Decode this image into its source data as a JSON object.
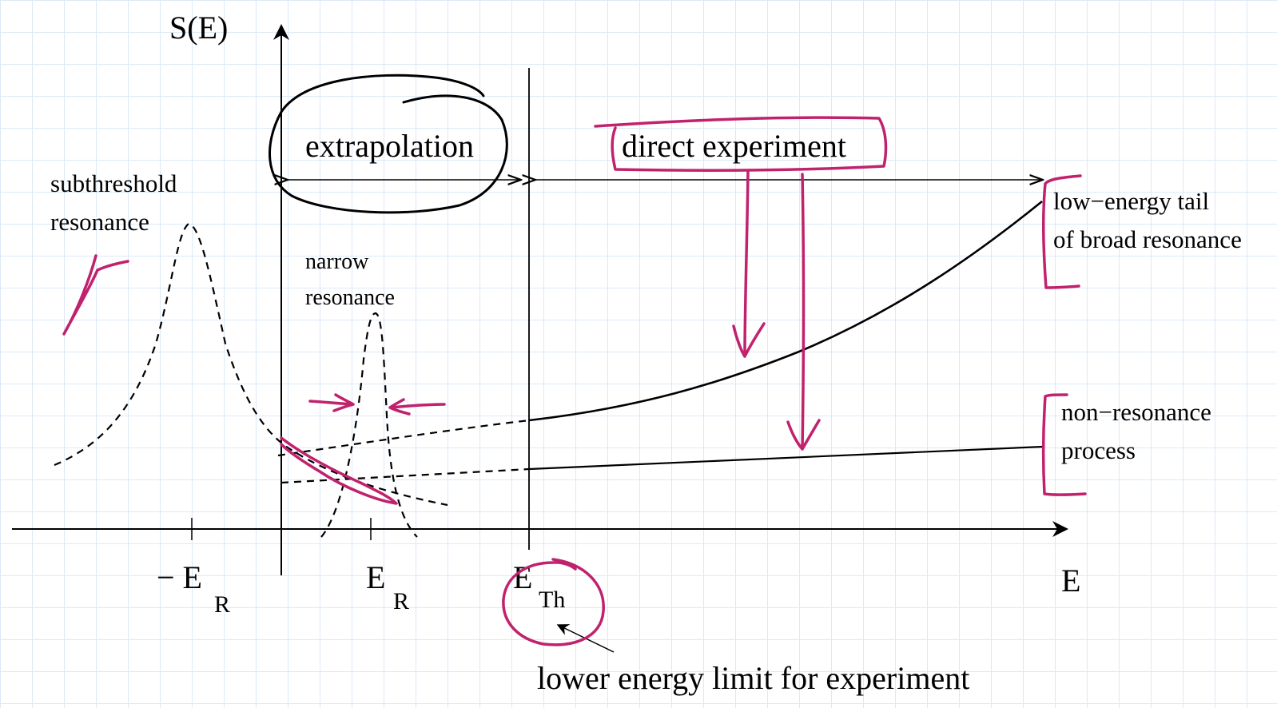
{
  "axes": {
    "y_label": "S(E)",
    "x_label": "E"
  },
  "ticks": {
    "neg_er_prefix": "− E",
    "neg_er_sub": "R",
    "er": "E",
    "er_sub": "R",
    "eth": "E",
    "eth_sub": "Th"
  },
  "regions": {
    "extrapolation": "extrapolation",
    "direct": "direct experiment"
  },
  "labels": {
    "subthreshold_line1": "subthreshold",
    "subthreshold_line2": "resonance",
    "narrow_line1": "narrow",
    "narrow_line2": "resonance",
    "tail_line1": "low−energy tail",
    "tail_line2": "of broad resonance",
    "nonres_line1": "non−resonance",
    "nonres_line2": "process",
    "lower_limit": "lower energy limit for experiment"
  },
  "colors": {
    "annotation": "#c0226e",
    "line": "#000000"
  }
}
